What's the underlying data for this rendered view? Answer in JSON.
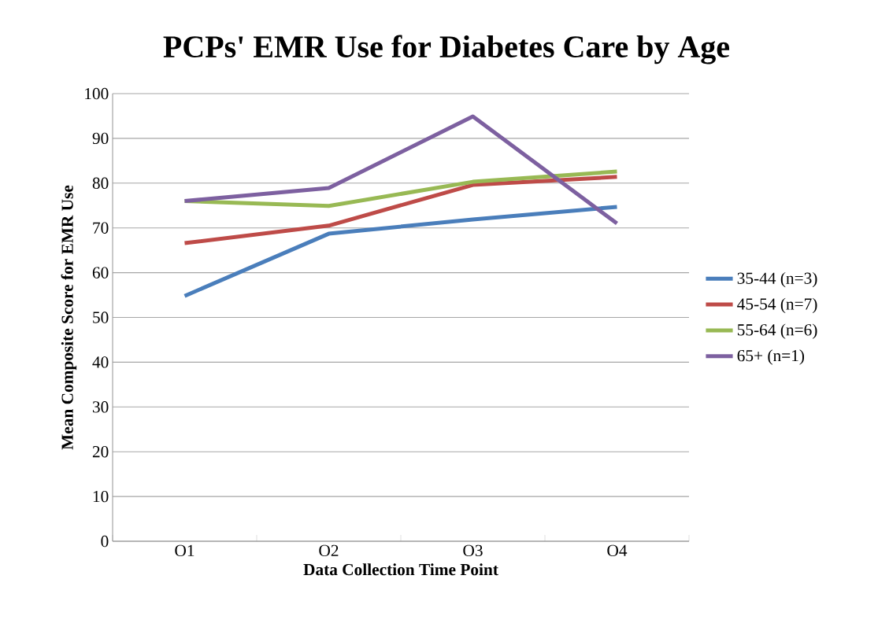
{
  "chart_data": {
    "type": "line",
    "title": "PCPs' EMR Use for Diabetes Care by Age",
    "xlabel": "Data Collection Time Point",
    "ylabel": "Mean Composite Score for EMR Use",
    "categories": [
      "O1",
      "O2",
      "O3",
      "O4"
    ],
    "series": [
      {
        "name": "35-44 (n=3)",
        "color": "#4a7ebb",
        "values": [
          54.8,
          68.7,
          71.9,
          74.7
        ]
      },
      {
        "name": "45-54 (n=7)",
        "color": "#be4b48",
        "values": [
          66.6,
          70.5,
          79.6,
          81.4
        ]
      },
      {
        "name": "55-64 (n=6)",
        "color": "#98b954",
        "values": [
          76.0,
          74.9,
          80.3,
          82.6
        ]
      },
      {
        "name": "65+ (n=1)",
        "color": "#7d60a0",
        "values": [
          76.0,
          78.9,
          94.9,
          71.0
        ]
      }
    ],
    "ylim": [
      0,
      100
    ],
    "yticks": [
      0,
      10,
      20,
      30,
      40,
      50,
      60,
      70,
      80,
      90,
      100
    ],
    "grid": "y",
    "legend": "right",
    "marker": "none",
    "line_style": "solid"
  }
}
